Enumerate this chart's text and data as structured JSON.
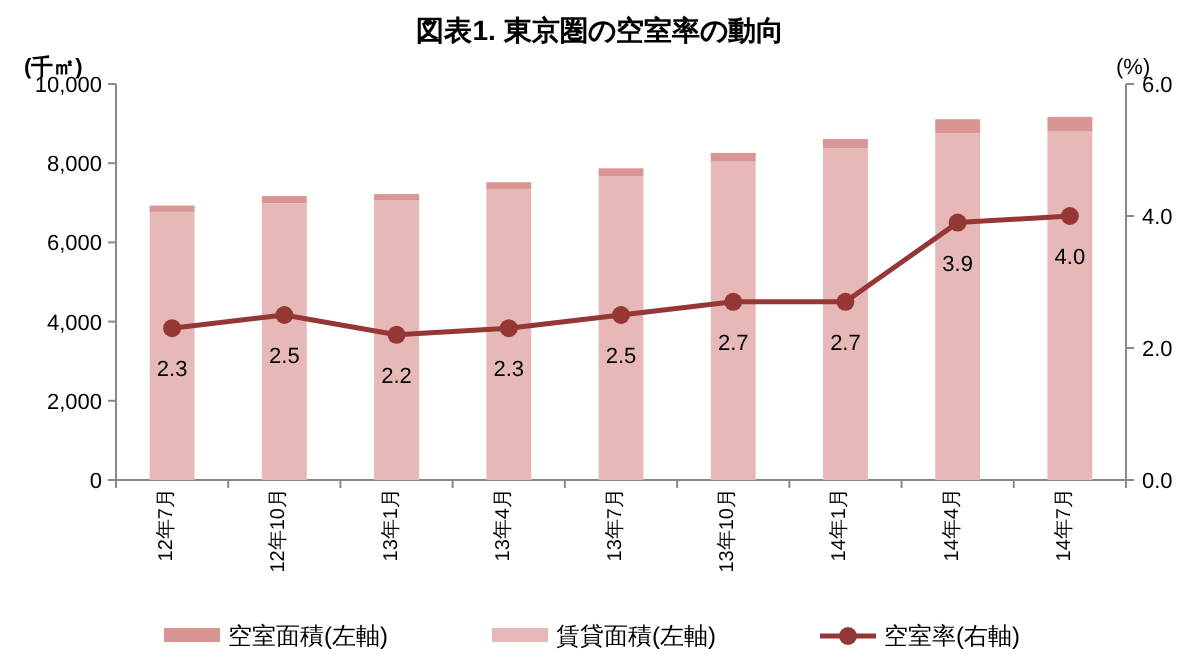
{
  "chart_data": {
    "type": "bar",
    "title": "図表1.  東京圏の空室率の動向",
    "ylabel": "(千㎡)",
    "y2label": "(%)",
    "categories": [
      "12年7月",
      "12年10月",
      "13年1月",
      "13年4月",
      "13年7月",
      "13年10月",
      "14年1月",
      "14年4月",
      "14年7月"
    ],
    "stacked": true,
    "series": [
      {
        "name": "賃貸面積(左軸)",
        "color": "#e6b9b8",
        "values": [
          6770,
          6990,
          7060,
          7350,
          7670,
          8040,
          8380,
          8760,
          8800
        ]
      },
      {
        "name": "空室面積(左軸)",
        "color": "#d99594",
        "values": [
          160,
          180,
          160,
          170,
          200,
          220,
          230,
          350,
          370
        ]
      },
      {
        "name": "空室率(右軸)",
        "type": "line",
        "axis": "y2",
        "color": "#953735",
        "marker": "circle",
        "values": [
          2.3,
          2.5,
          2.2,
          2.3,
          2.5,
          2.7,
          2.7,
          3.9,
          4.0
        ],
        "value_labels": [
          "2.3",
          "2.5",
          "2.2",
          "2.3",
          "2.5",
          "2.7",
          "2.7",
          "3.9",
          "4.0"
        ]
      }
    ],
    "ylim": [
      0,
      10000
    ],
    "yticks": [
      0,
      {
        "value": 2000,
        "label": "2,000"
      },
      {
        "value": 4000,
        "label": "4,000"
      },
      {
        "value": 6000,
        "label": "6,000"
      },
      {
        "value": 8000,
        "label": "8,000"
      },
      {
        "value": 10000,
        "label": "10,000"
      }
    ],
    "y2lim": [
      0,
      6
    ],
    "y2ticks": [
      {
        "value": 0,
        "label": "0.0"
      },
      {
        "value": 2,
        "label": "2.0"
      },
      {
        "value": 4,
        "label": "4.0"
      },
      {
        "value": 6,
        "label": "6.0"
      }
    ],
    "grid": false,
    "legend": "bottom"
  }
}
